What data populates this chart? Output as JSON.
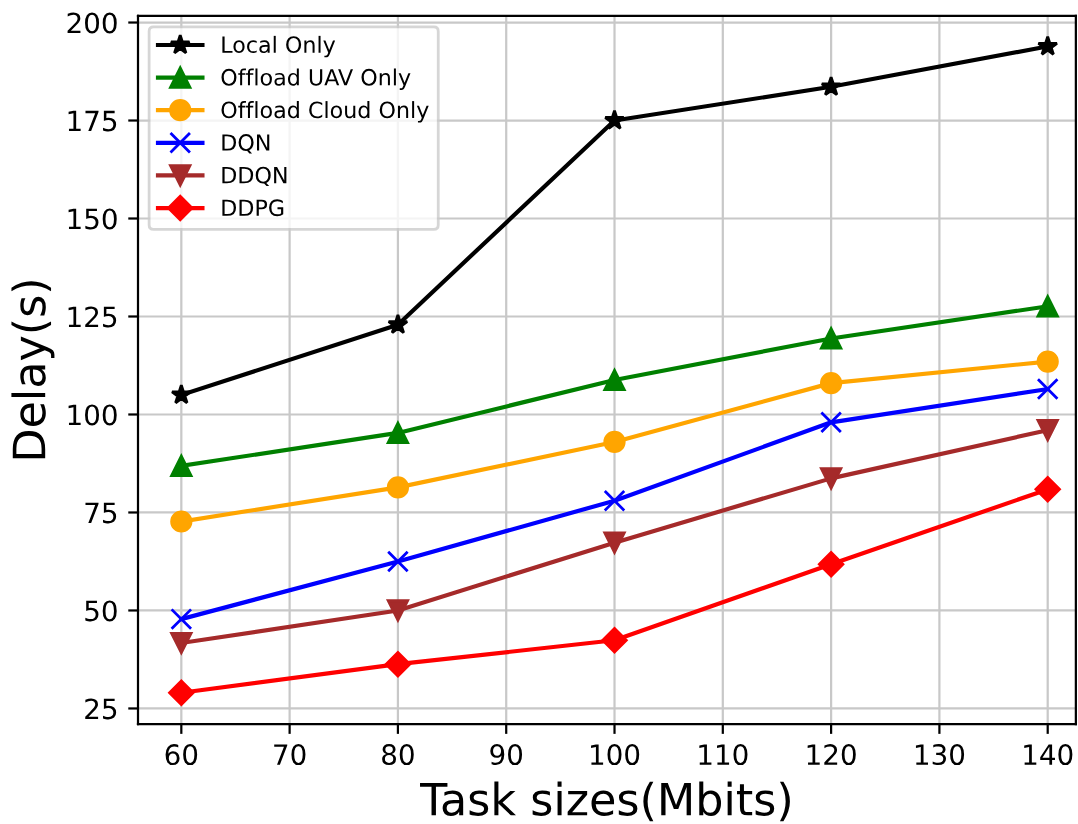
{
  "chart_data": {
    "type": "line",
    "xlabel": "Task sizes(Mbits)",
    "ylabel": "Delay(s)",
    "x": [
      60,
      80,
      100,
      120,
      140
    ],
    "series": [
      {
        "name": "Local Only",
        "color": "#000000",
        "marker": "star",
        "values": [
          105,
          122.9,
          175,
          183.6,
          193.9
        ]
      },
      {
        "name": "Offload UAV Only",
        "color": "#008000",
        "marker": "triangle",
        "values": [
          86.9,
          95.3,
          108.8,
          119.4,
          127.6
        ]
      },
      {
        "name": "Offload Cloud Only",
        "color": "#ffa500",
        "marker": "circle",
        "values": [
          72.7,
          81.4,
          93,
          108,
          113.5
        ]
      },
      {
        "name": "DQN",
        "color": "#0000ff",
        "marker": "cross",
        "values": [
          47.8,
          62.5,
          78,
          98,
          106.5
        ]
      },
      {
        "name": "DDQN",
        "color": "#a52a2a",
        "marker": "triangle_down",
        "values": [
          41.7,
          50,
          67.3,
          83.7,
          96
        ]
      },
      {
        "name": "DDPG",
        "color": "#ff0000",
        "marker": "diamond",
        "values": [
          29,
          36.3,
          42.4,
          61.8,
          80.9
        ]
      }
    ],
    "xlim": [
      56,
      142.6
    ],
    "ylim": [
      21,
      201.7
    ],
    "xticks": [
      60,
      70,
      80,
      90,
      100,
      110,
      120,
      130,
      140
    ],
    "yticks": [
      25,
      50,
      75,
      100,
      125,
      150,
      175,
      200
    ],
    "grid": true,
    "legend": "top left",
    "line_style": "solid"
  }
}
